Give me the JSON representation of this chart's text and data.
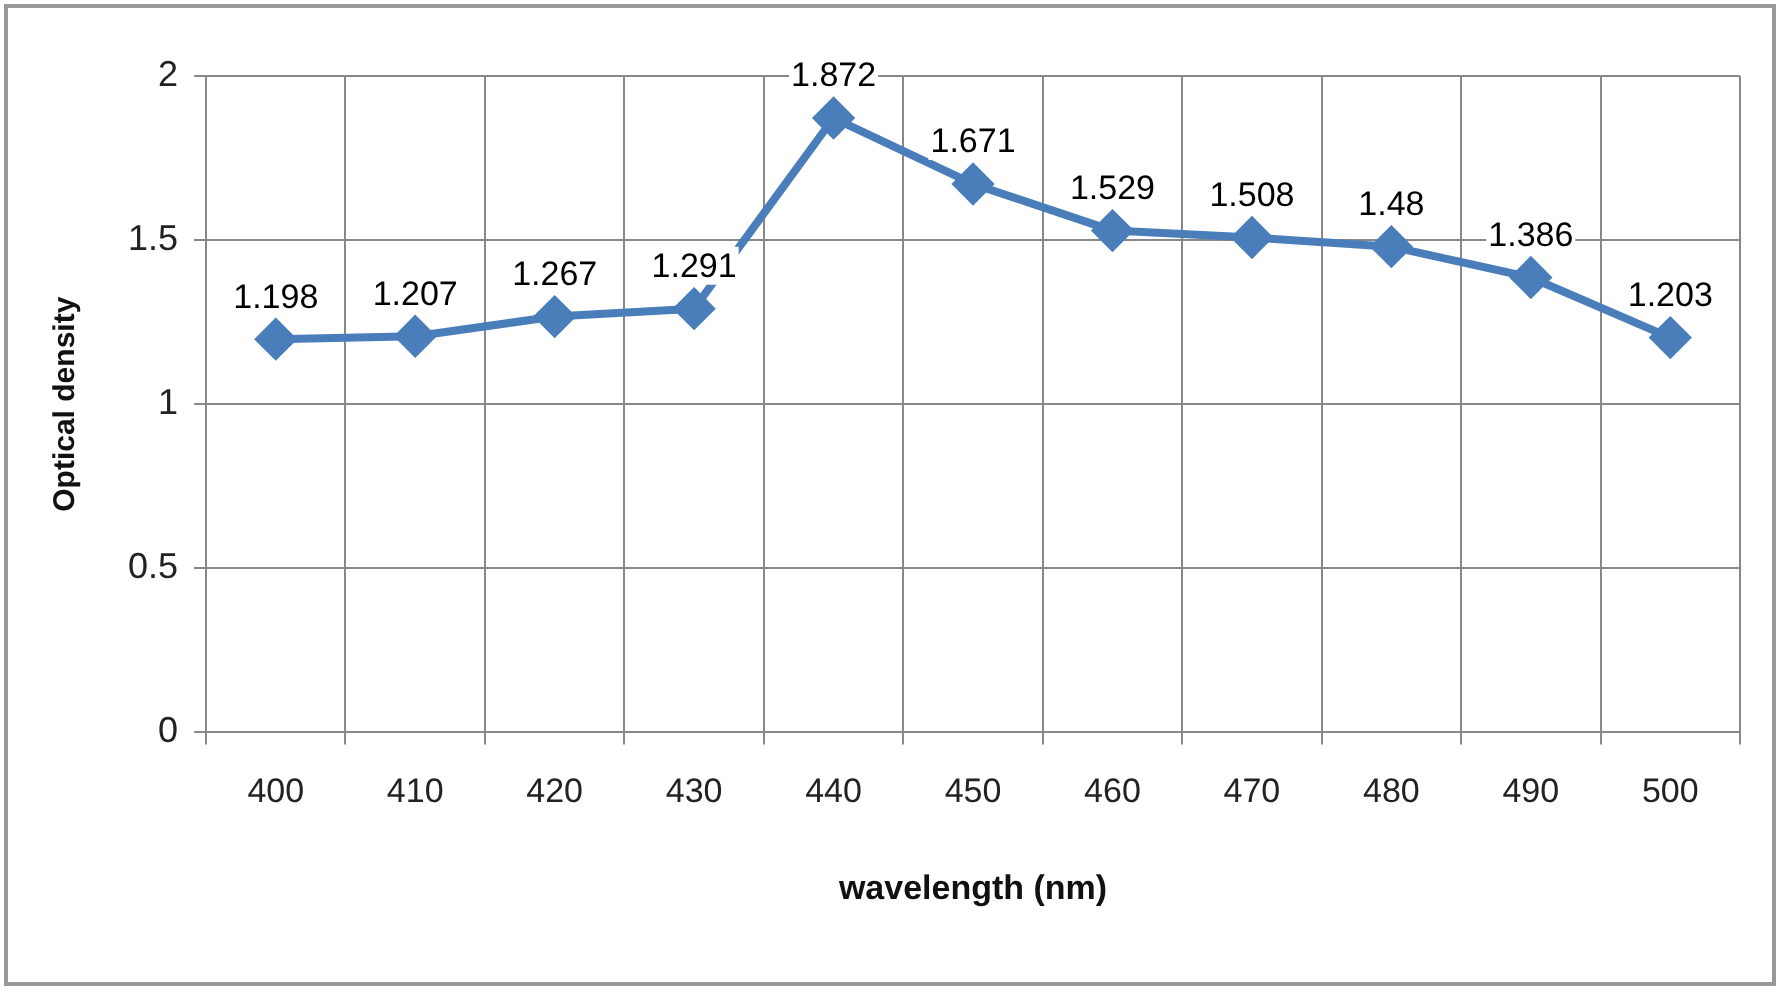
{
  "chart_data": {
    "type": "line",
    "xlabel": "wavelength (nm)",
    "ylabel": "Optical density",
    "categories": [
      "400",
      "410",
      "420",
      "430",
      "440",
      "450",
      "460",
      "470",
      "480",
      "490",
      "500"
    ],
    "series": [
      {
        "color": "#4a7ebb",
        "values": [
          1.198,
          1.207,
          1.267,
          1.291,
          1.872,
          1.671,
          1.529,
          1.508,
          1.48,
          1.386,
          1.203
        ]
      }
    ],
    "ylim": [
      0,
      2
    ],
    "yticks": [
      0,
      0.5,
      1,
      1.5,
      2
    ],
    "grid": true,
    "legend": false,
    "marker": "diamond",
    "line_style": "solid",
    "data_labels": true
  }
}
